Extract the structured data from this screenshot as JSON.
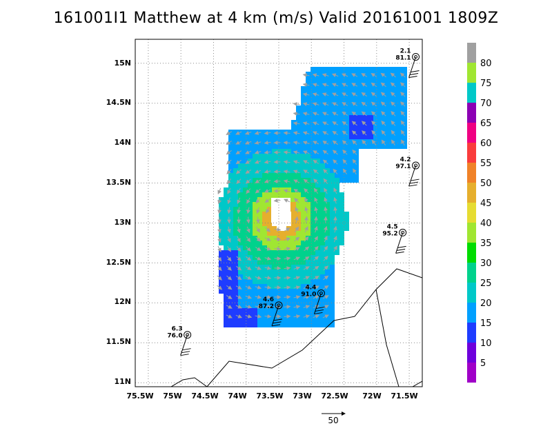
{
  "title": "161001I1 Matthew at 4 km (m/s) Valid 20161001  1809Z",
  "map": {
    "lat_labels": [
      "15N",
      "14.5N",
      "14N",
      "13.5N",
      "13N",
      "12.5N",
      "12N",
      "11.5N",
      "11N"
    ],
    "lon_labels": [
      "75.5W",
      "75W",
      "74.5W",
      "74W",
      "73.5W",
      "73W",
      "72.5W",
      "72W",
      "71.5W"
    ],
    "lat_range": [
      10.95,
      15.3
    ],
    "lon_range": [
      -75.7,
      -71.3
    ],
    "grid": true,
    "storm_center": {
      "lon": -73.2,
      "lat": 13.05
    },
    "vector_scale_label": "50"
  },
  "colorbar": {
    "labels": [
      "5",
      "10",
      "15",
      "20",
      "25",
      "30",
      "35",
      "40",
      "45",
      "50",
      "55",
      "60",
      "65",
      "70",
      "75",
      "80"
    ],
    "colors": [
      "#a000c8",
      "#6e00dc",
      "#1e3cff",
      "#00a0ff",
      "#00c8c8",
      "#00d28c",
      "#00dc00",
      "#a0e632",
      "#e6dc32",
      "#e6af2d",
      "#f08228",
      "#fa3c3c",
      "#f00082",
      "#8c00b4",
      "#00c8c8",
      "#a0e632",
      "#a0a0a0"
    ]
  },
  "stations": [
    {
      "wind": "2.1",
      "pressure": "81.1",
      "lon": -71.4,
      "lat": 15.08
    },
    {
      "wind": "4.2",
      "pressure": "97.1",
      "lon": -71.4,
      "lat": 13.72
    },
    {
      "wind": "4.5",
      "pressure": "95.2",
      "lon": -71.6,
      "lat": 12.88
    },
    {
      "wind": "4.4",
      "pressure": "91.0",
      "lon": -72.85,
      "lat": 12.12
    },
    {
      "wind": "4.6",
      "pressure": "87.2",
      "lon": -73.5,
      "lat": 11.97
    },
    {
      "wind": "6.3",
      "pressure": "76.0",
      "lon": -74.9,
      "lat": 11.6
    }
  ]
}
